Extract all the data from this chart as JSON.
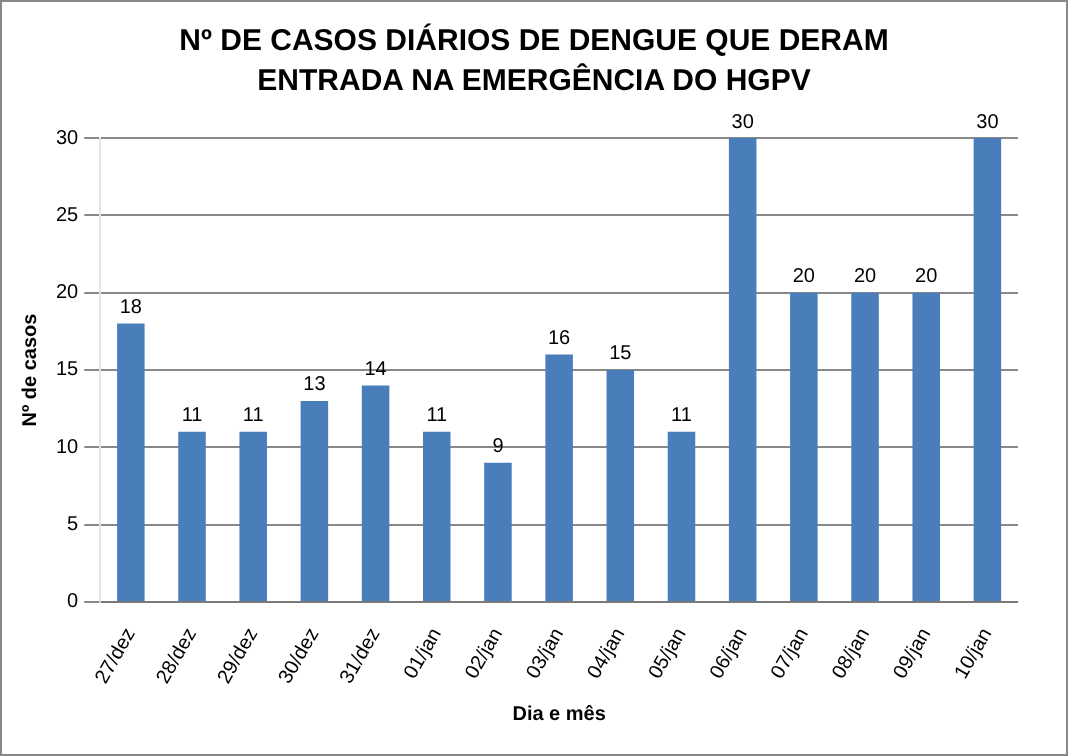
{
  "chart_data": {
    "type": "bar",
    "title": "Nº DE CASOS DIÁRIOS DE DENGUE QUE DERAM ENTRADA NA EMERGÊNCIA DO HGPV",
    "xlabel": "Dia e mês",
    "ylabel": "Nº de casos",
    "categories": [
      "27/dez",
      "28/dez",
      "29/dez",
      "30/dez",
      "31/dez",
      "01/jan",
      "02/jan",
      "03/jan",
      "04/jan",
      "05/jan",
      "06/jan",
      "07/jan",
      "08/jan",
      "09/jan",
      "10/jan"
    ],
    "values": [
      18,
      11,
      11,
      13,
      14,
      11,
      9,
      16,
      15,
      11,
      30,
      20,
      20,
      20,
      30
    ],
    "color": "#4a7ebb",
    "ylim": [
      0,
      30
    ],
    "yticks": [
      0,
      5,
      10,
      15,
      20,
      25,
      30
    ],
    "grid": "y",
    "data_labels": true
  }
}
